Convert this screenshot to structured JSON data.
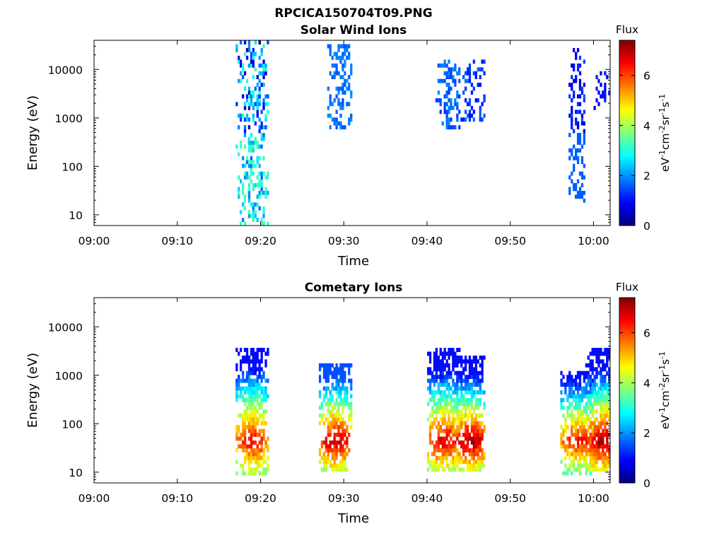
{
  "figure": {
    "title": "RPCICA150704T09.PNG"
  },
  "colors": {
    "jet": [
      "#00007f",
      "#0000ff",
      "#007fff",
      "#00ffff",
      "#7fff7f",
      "#ffff00",
      "#ff7f00",
      "#ff0000",
      "#7f0000"
    ]
  },
  "chart_data": [
    {
      "type": "heatmap",
      "title": "Solar Wind Ions",
      "xlabel": "Time",
      "ylabel": "Energy (eV)",
      "yscale": "log",
      "xlim": [
        "09:00",
        "10:02"
      ],
      "ylim": [
        6,
        40000
      ],
      "xticks": [
        "09:00",
        "09:10",
        "09:20",
        "09:30",
        "09:40",
        "09:50",
        "10:00"
      ],
      "yticks": [
        "10",
        "100",
        "1000",
        "10000"
      ],
      "colorbar": {
        "title": "Flux",
        "label": "eV-1cm-2sr-1s-1",
        "range": [
          0,
          7.4
        ],
        "ticks": [
          "0",
          "2",
          "4",
          "6"
        ]
      },
      "clusters": [
        {
          "t_start": "09:17",
          "t_end": "09:20",
          "e_min": 6,
          "e_max": 40000,
          "flux_range": [
            0.4,
            3.2
          ]
        },
        {
          "t_start": "09:28",
          "t_end": "09:30",
          "e_min": 600,
          "e_max": 35000,
          "flux_range": [
            1.5,
            2.0
          ]
        },
        {
          "t_start": "09:41",
          "t_end": "09:43",
          "e_min": 600,
          "e_max": 15000,
          "flux_range": [
            1.3,
            2.0
          ]
        },
        {
          "t_start": "09:44",
          "t_end": "09:46",
          "e_min": 800,
          "e_max": 17000,
          "flux_range": [
            0.8,
            1.8
          ]
        },
        {
          "t_start": "09:57",
          "t_end": "09:58",
          "e_min": 18,
          "e_max": 35000,
          "flux_range": [
            0.5,
            1.6
          ]
        },
        {
          "t_start": "10:00",
          "t_end": "10:01",
          "e_min": 1500,
          "e_max": 10000,
          "flux_range": [
            0.7,
            1.2
          ]
        }
      ]
    },
    {
      "type": "heatmap",
      "title": "Cometary Ions",
      "xlabel": "Time",
      "ylabel": "Energy (eV)",
      "yscale": "log",
      "xlim": [
        "09:00",
        "10:02"
      ],
      "ylim": [
        6,
        40000
      ],
      "xticks": [
        "09:00",
        "09:10",
        "09:20",
        "09:30",
        "09:40",
        "09:50",
        "10:00"
      ],
      "yticks": [
        "10",
        "100",
        "1000",
        "10000"
      ],
      "colorbar": {
        "title": "Flux",
        "label": "eV-1cm-2sr-1s-1",
        "range": [
          0,
          7.4
        ],
        "ticks": [
          "0",
          "2",
          "4",
          "6"
        ]
      },
      "clusters": [
        {
          "t_start": "09:17",
          "t_end": "09:20",
          "e_min": 8,
          "e_max": 4000,
          "flux_range": [
            1.0,
            6.5
          ]
        },
        {
          "t_start": "09:27",
          "t_end": "09:30",
          "e_min": 10,
          "e_max": 1800,
          "flux_range": [
            1.5,
            7.0
          ]
        },
        {
          "t_start": "09:40",
          "t_end": "09:43",
          "e_min": 10,
          "e_max": 3500,
          "flux_range": [
            1.0,
            6.8
          ]
        },
        {
          "t_start": "09:43",
          "t_end": "09:46",
          "e_min": 10,
          "e_max": 2500,
          "flux_range": [
            1.0,
            7.2
          ]
        },
        {
          "t_start": "09:56",
          "t_end": "09:59",
          "e_min": 8,
          "e_max": 1300,
          "flux_range": [
            1.0,
            6.5
          ]
        },
        {
          "t_start": "09:59",
          "t_end": "10:02",
          "e_min": 10,
          "e_max": 4000,
          "flux_range": [
            1.0,
            7.2
          ]
        }
      ]
    }
  ]
}
